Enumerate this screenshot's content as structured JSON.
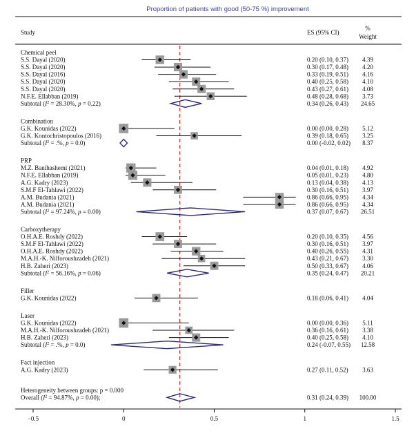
{
  "chart_data": {
    "type": "forest",
    "title": "Proportion of patients with good (50-75 %) improvement",
    "columns": {
      "study": "Study",
      "es": "ES (95% CI)",
      "weight_line1": "%",
      "weight_line2": "Weight"
    },
    "xlim": [
      -0.5,
      1.5
    ],
    "x_ticks": [
      -0.5,
      0,
      0.5,
      1,
      1.5
    ],
    "x_tick_labels": [
      "−0.5",
      "0",
      "0.5",
      "1",
      "1.5"
    ],
    "overall_line": 0.31,
    "colors": {
      "title": "#3b3bb0",
      "diamond": "#2a2a7a",
      "reference_line": "#c0392b",
      "marker_box": "#9a9a9a"
    },
    "groups": [
      {
        "name": "Chemical peel",
        "studies": [
          {
            "label": "S.S. Dayal (2020)",
            "es": 0.2,
            "lo": 0.1,
            "hi": 0.37,
            "ci": "0.20 (0.10, 0.37)",
            "weight": "4.39"
          },
          {
            "label": "S.S. Dayal (2020)",
            "es": 0.3,
            "lo": 0.17,
            "hi": 0.48,
            "ci": "0.30 (0.17, 0.48)",
            "weight": "4.20"
          },
          {
            "label": "S.S. Dayal (2016)",
            "es": 0.33,
            "lo": 0.19,
            "hi": 0.51,
            "ci": "0.33 (0.19, 0.51)",
            "weight": "4.16"
          },
          {
            "label": "S.S. Dayal (2020)",
            "es": 0.4,
            "lo": 0.25,
            "hi": 0.58,
            "ci": "0.40 (0.25, 0.58)",
            "weight": "4.10"
          },
          {
            "label": "S.S. Dayal (2020)",
            "es": 0.43,
            "lo": 0.27,
            "hi": 0.61,
            "ci": "0.43 (0.27, 0.61)",
            "weight": "4.08"
          },
          {
            "label": "N.F.E. Ellabban (2019)",
            "es": 0.48,
            "lo": 0.28,
            "hi": 0.68,
            "ci": "0.48 (0.28, 0.68)",
            "weight": "3.73"
          }
        ],
        "subtotal": {
          "prefix": "Subtotal (",
          "i2": "I",
          "stats": " = 28.30%, ",
          "p": "p",
          "pval": " = 0.22)",
          "es": 0.34,
          "lo": 0.26,
          "hi": 0.43,
          "ci": "0.34 (0.26, 0.43)",
          "weight": "24.65"
        }
      },
      {
        "name": "Combination",
        "studies": [
          {
            "label": "G.K. Kounidas (2022)",
            "es": 0.0,
            "lo": 0.0,
            "hi": 0.28,
            "ci": "0.00 (0.00, 0.28)",
            "weight": "5.12"
          },
          {
            "label": "G.K. Kontochristopoulos (2016)",
            "es": 0.39,
            "lo": 0.18,
            "hi": 0.65,
            "ci": "0.39 (0.18, 0.65)",
            "weight": "3.25"
          }
        ],
        "subtotal": {
          "prefix": "Subtotal (",
          "i2": "I",
          "stats": " = .%, ",
          "p": "p",
          "pval": " = 0.0)",
          "es": 0.0,
          "lo": -0.02,
          "hi": 0.02,
          "ci": "0.00 (-0.02, 0.02)",
          "weight": "8.37"
        }
      },
      {
        "name": "PRP",
        "studies": [
          {
            "label": "M.Z. Banihashemi (2021)",
            "es": 0.04,
            "lo": 0.01,
            "hi": 0.18,
            "ci": "0.04 (0.01, 0.18)",
            "weight": "4.92"
          },
          {
            "label": "N.F.E. Ellabban (2019)",
            "es": 0.05,
            "lo": 0.01,
            "hi": 0.23,
            "ci": "0.05 (0.01, 0.23)",
            "weight": "4.80"
          },
          {
            "label": "A.G. Kadry (2023)",
            "es": 0.13,
            "lo": 0.04,
            "hi": 0.38,
            "ci": "0.13 (0.04, 0.38)",
            "weight": "4.13"
          },
          {
            "label": "S.M.F El-Tahlawi (2022)",
            "es": 0.3,
            "lo": 0.16,
            "hi": 0.51,
            "ci": "0.30 (0.16, 0.51)",
            "weight": "3.97"
          },
          {
            "label": "A.M. Budania (2021)",
            "es": 0.86,
            "lo": 0.66,
            "hi": 0.95,
            "ci": "0.86 (0.66, 0.95)",
            "weight": "4.34"
          },
          {
            "label": "A.M. Budania (2021)",
            "es": 0.86,
            "lo": 0.66,
            "hi": 0.95,
            "ci": "0.86 (0.66, 0.95)",
            "weight": "4.34"
          }
        ],
        "subtotal": {
          "prefix": "Subtotal (",
          "i2": "I",
          "stats": " = 97.24%, ",
          "p": "p",
          "pval": " = 0.00)",
          "es": 0.37,
          "lo": 0.07,
          "hi": 0.67,
          "ci": "0.37 (0.07, 0.67)",
          "weight": "26.51"
        }
      },
      {
        "name": "Carboxytherapy",
        "studies": [
          {
            "label": "O.H.A.E. Roshdy (2022)",
            "es": 0.2,
            "lo": 0.1,
            "hi": 0.35,
            "ci": "0.20 (0.10, 0.35)",
            "weight": "4.56"
          },
          {
            "label": "S.M.F El-Tahlawi (2022)",
            "es": 0.3,
            "lo": 0.16,
            "hi": 0.51,
            "ci": "0.30 (0.16, 0.51)",
            "weight": "3.97"
          },
          {
            "label": "O.H.A.E. Roshdy (2022)",
            "es": 0.4,
            "lo": 0.26,
            "hi": 0.55,
            "ci": "0.40 (0.26, 0.55)",
            "weight": "4.31"
          },
          {
            "label": "M.A.H.-K. Nilforoushzadeh (2021)",
            "es": 0.43,
            "lo": 0.21,
            "hi": 0.67,
            "ci": "0.43 (0.21, 0.67)",
            "weight": "3.30"
          },
          {
            "label": "H.B. Zaheri (2023)",
            "es": 0.5,
            "lo": 0.33,
            "hi": 0.67,
            "ci": "0.50 (0.33, 0.67)",
            "weight": "4.06"
          }
        ],
        "subtotal": {
          "prefix": "Subtotal (",
          "i2": "I",
          "stats": " = 56.16%, ",
          "p": "p",
          "pval": " = 0.06)",
          "es": 0.35,
          "lo": 0.24,
          "hi": 0.47,
          "ci": "0.35 (0.24, 0.47)",
          "weight": "20.21"
        }
      },
      {
        "name": "Filler",
        "studies": [
          {
            "label": "G.K. Kounidas (2022)",
            "es": 0.18,
            "lo": 0.06,
            "hi": 0.41,
            "ci": "0.18 (0.06, 0.41)",
            "weight": "4.04"
          }
        ]
      },
      {
        "name": "Laser",
        "studies": [
          {
            "label": "G.K. Kounidas (2022)",
            "es": 0.0,
            "lo": 0.0,
            "hi": 0.36,
            "ci": "0.00 (0.00, 0.36)",
            "weight": "5.11"
          },
          {
            "label": "M.A.H.-K. Nilforoushzadeh (2021)",
            "es": 0.36,
            "lo": 0.16,
            "hi": 0.61,
            "ci": "0.36 (0.16, 0.61)",
            "weight": "3.38"
          },
          {
            "label": "H.B. Zaheri (2023)",
            "es": 0.4,
            "lo": 0.25,
            "hi": 0.58,
            "ci": "0.40 (0.25, 0.58)",
            "weight": "4.10"
          }
        ],
        "subtotal": {
          "prefix": "Subtotal (",
          "i2": "I",
          "stats": " = .%, ",
          "p": "p",
          "pval": " = 0.0)",
          "es": 0.24,
          "lo": -0.07,
          "hi": 0.55,
          "ci": "0.24 (-0.07, 0.55)",
          "weight": "12.58"
        }
      },
      {
        "name": "Fact injection",
        "studies": [
          {
            "label": "A.G. Kadry (2023)",
            "es": 0.27,
            "lo": 0.11,
            "hi": 0.52,
            "ci": "0.27 (0.11, 0.52)",
            "weight": "3.63"
          }
        ]
      }
    ],
    "heterogeneity": "Heterogeneity between groups: p = 0.000",
    "overall": {
      "prefix": "Overall (",
      "i2": "I",
      "stats": " = 94.87%, ",
      "p": "p",
      "pval": " = 0.00);",
      "es": 0.31,
      "lo": 0.24,
      "hi": 0.39,
      "ci": "0.31 (0.24, 0.39)",
      "weight": "100.00"
    }
  }
}
